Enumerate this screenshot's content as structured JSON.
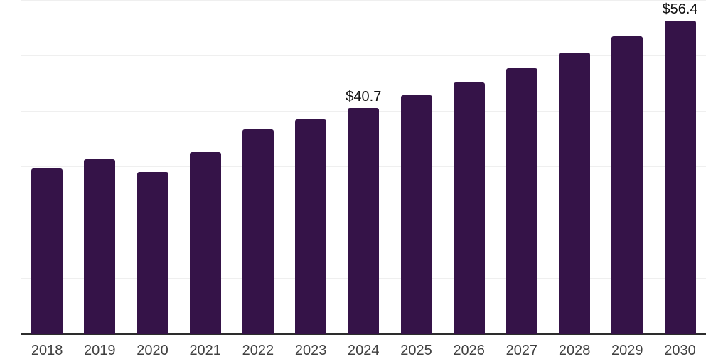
{
  "chart_data": {
    "type": "bar",
    "title": "",
    "categories": [
      "2018",
      "2019",
      "2020",
      "2021",
      "2022",
      "2023",
      "2024",
      "2025",
      "2026",
      "2027",
      "2028",
      "2029",
      "2030"
    ],
    "values": [
      29.8,
      31.5,
      29.2,
      32.8,
      36.8,
      38.6,
      40.7,
      43.0,
      45.3,
      47.8,
      50.6,
      53.6,
      56.4
    ],
    "value_labels": [
      "",
      "",
      "",
      "",
      "",
      "",
      "$40.7",
      "",
      "",
      "",
      "",
      "",
      "$56.4"
    ],
    "xlabel": "",
    "ylabel": "",
    "ylim": [
      0,
      60
    ],
    "grid_step": 10,
    "grid_on": true,
    "legend_position": "none"
  },
  "style": {
    "background": "#ffffff",
    "bar_color": "#351348",
    "grid_color": "#efefef",
    "axis_color": "#2d2d2d",
    "tick_label_color": "#404040",
    "value_label_color": "#111111"
  }
}
